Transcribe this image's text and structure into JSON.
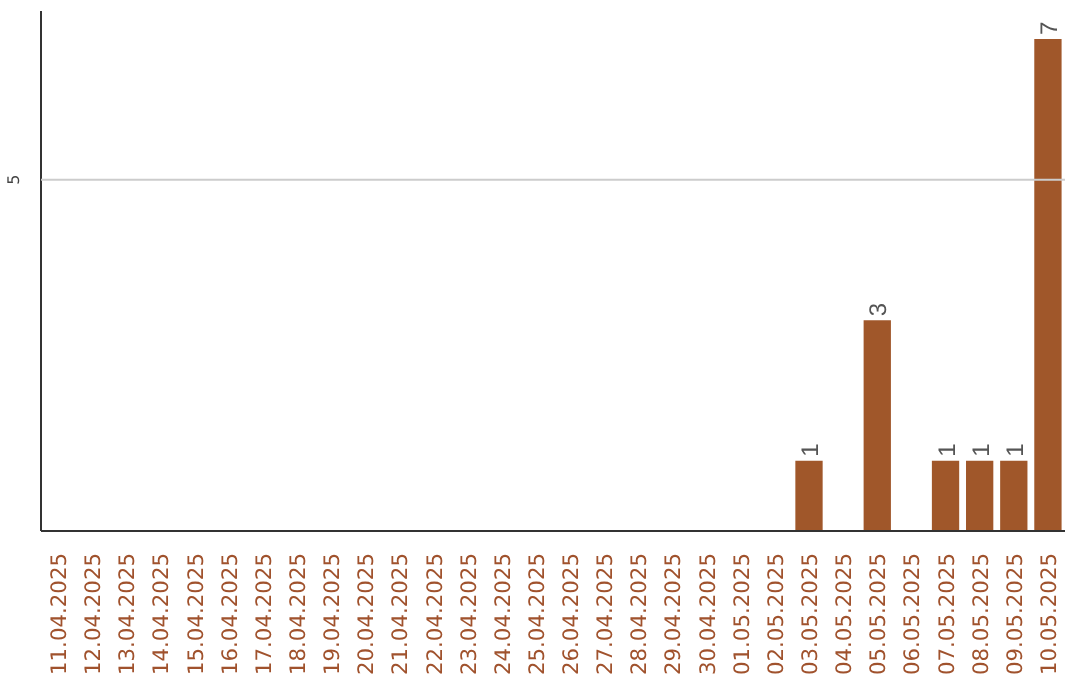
{
  "chart_data": {
    "type": "bar",
    "categories": [
      "11.04.2025",
      "12.04.2025",
      "13.04.2025",
      "14.04.2025",
      "15.04.2025",
      "16.04.2025",
      "17.04.2025",
      "18.04.2025",
      "19.04.2025",
      "20.04.2025",
      "21.04.2025",
      "22.04.2025",
      "23.04.2025",
      "24.04.2025",
      "25.04.2025",
      "26.04.2025",
      "27.04.2025",
      "28.04.2025",
      "29.04.2025",
      "30.04.2025",
      "01.05.2025",
      "02.05.2025",
      "03.05.2025",
      "04.05.2025",
      "05.05.2025",
      "06.05.2025",
      "07.05.2025",
      "08.05.2025",
      "09.05.2025",
      "10.05.2025"
    ],
    "values": [
      null,
      null,
      null,
      null,
      null,
      null,
      null,
      null,
      null,
      null,
      null,
      null,
      null,
      null,
      null,
      null,
      null,
      null,
      null,
      null,
      null,
      null,
      1,
      null,
      3,
      null,
      1,
      1,
      1,
      7
    ],
    "data_labels": true,
    "color": "#a0572a",
    "ylim": [
      0,
      7.4
    ],
    "ref_lines": [
      {
        "axis": "y",
        "value": 5,
        "label": "5",
        "color": "#cccccc"
      }
    ]
  }
}
